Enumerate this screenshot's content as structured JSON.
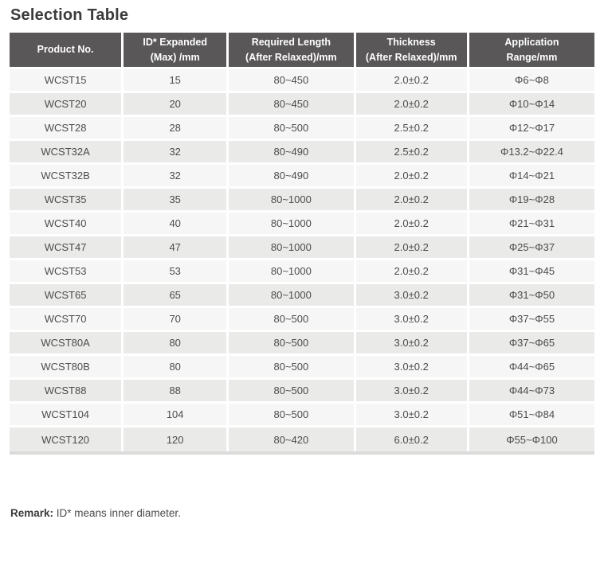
{
  "page": {
    "title": "Selection Table"
  },
  "table": {
    "columns": [
      "Product No.",
      "ID* Expanded\n(Max) /mm",
      "Required Length\n(After Relaxed)/mm",
      "Thickness\n(After Relaxed)/mm",
      "Application\nRange/mm"
    ],
    "rows": [
      [
        "WCST15",
        "15",
        "80~450",
        "2.0±0.2",
        "Φ6~Φ8"
      ],
      [
        "WCST20",
        "20",
        "80~450",
        "2.0±0.2",
        "Φ10~Φ14"
      ],
      [
        "WCST28",
        "28",
        "80~500",
        "2.5±0.2",
        "Φ12~Φ17"
      ],
      [
        "WCST32A",
        "32",
        "80~490",
        "2.5±0.2",
        "Φ13.2~Φ22.4"
      ],
      [
        "WCST32B",
        "32",
        "80~490",
        "2.0±0.2",
        "Φ14~Φ21"
      ],
      [
        "WCST35",
        "35",
        "80~1000",
        "2.0±0.2",
        "Φ19~Φ28"
      ],
      [
        "WCST40",
        "40",
        "80~1000",
        "2.0±0.2",
        "Φ21~Φ31"
      ],
      [
        "WCST47",
        "47",
        "80~1000",
        "2.0±0.2",
        "Φ25~Φ37"
      ],
      [
        "WCST53",
        "53",
        "80~1000",
        "2.0±0.2",
        "Φ31~Φ45"
      ],
      [
        "WCST65",
        "65",
        "80~1000",
        "3.0±0.2",
        "Φ31~Φ50"
      ],
      [
        "WCST70",
        "70",
        "80~500",
        "3.0±0.2",
        "Φ37~Φ55"
      ],
      [
        "WCST80A",
        "80",
        "80~500",
        "3.0±0.2",
        "Φ37~Φ65"
      ],
      [
        "WCST80B",
        "80",
        "80~500",
        "3.0±0.2",
        "Φ44~Φ65"
      ],
      [
        "WCST88",
        "88",
        "80~500",
        "3.0±0.2",
        "Φ44~Φ73"
      ],
      [
        "WCST104",
        "104",
        "80~500",
        "3.0±0.2",
        "Φ51~Φ84"
      ],
      [
        "WCST120",
        "120",
        "80~420",
        "6.0±0.2",
        "Φ55~Φ100"
      ]
    ],
    "header_bg_color": "#595757",
    "row_odd_color": "#f7f6f6",
    "row_even_color": "#eaeae9"
  },
  "remark": {
    "label": "Remark:",
    "text": " ID* means inner diameter."
  }
}
